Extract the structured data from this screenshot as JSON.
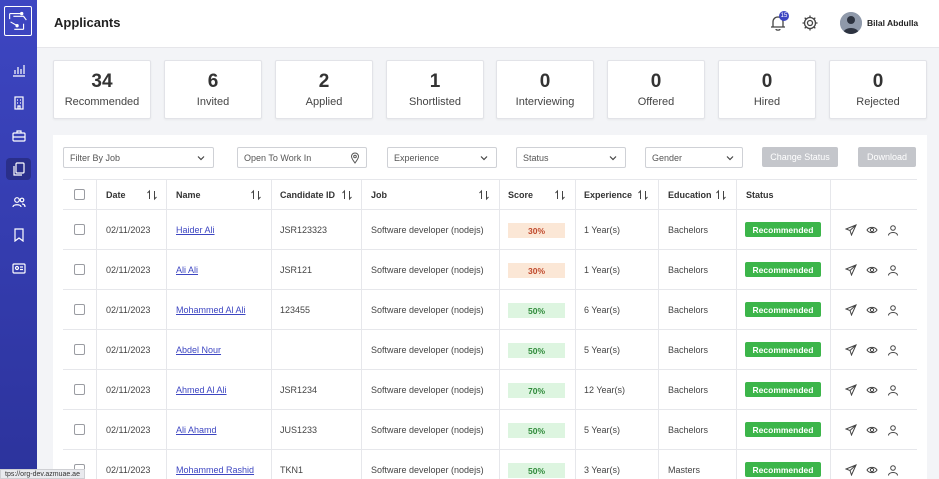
{
  "header": {
    "title": "Applicants",
    "notification_count": "15",
    "user_name": "Bilal Abdulla"
  },
  "stats": [
    {
      "value": "34",
      "label": "Recommended"
    },
    {
      "value": "6",
      "label": "Invited"
    },
    {
      "value": "2",
      "label": "Applied"
    },
    {
      "value": "1",
      "label": "Shortlisted"
    },
    {
      "value": "0",
      "label": "Interviewing"
    },
    {
      "value": "0",
      "label": "Offered"
    },
    {
      "value": "0",
      "label": "Hired"
    },
    {
      "value": "0",
      "label": "Rejected"
    }
  ],
  "filters": {
    "job": "Filter By Job",
    "location": "Open To Work In",
    "experience": "Experience",
    "status": "Status",
    "gender": "Gender",
    "change_status": "Change Status",
    "download": "Download"
  },
  "table": {
    "columns": {
      "date": "Date",
      "name": "Name",
      "candidate_id": "Candidate ID",
      "job": "Job",
      "score": "Score",
      "experience": "Experience",
      "education": "Education",
      "status": "Status"
    },
    "rows": [
      {
        "date": "02/11/2023",
        "name": "Haider Ali",
        "candidate_id": "JSR123323",
        "job": "Software developer (nodejs)",
        "score": "30%",
        "experience": "1 Year(s)",
        "education": "Bachelors",
        "status": "Recommended"
      },
      {
        "date": "02/11/2023",
        "name": "Ali Ali",
        "candidate_id": "JSR121",
        "job": "Software developer (nodejs)",
        "score": "30%",
        "experience": "1 Year(s)",
        "education": "Bachelors",
        "status": "Recommended"
      },
      {
        "date": "02/11/2023",
        "name": "Mohammed Al Ali",
        "candidate_id": "123455",
        "job": "Software developer (nodejs)",
        "score": "50%",
        "experience": "6 Year(s)",
        "education": "Bachelors",
        "status": "Recommended"
      },
      {
        "date": "02/11/2023",
        "name": "Abdel Nour",
        "candidate_id": "",
        "job": "Software developer (nodejs)",
        "score": "50%",
        "experience": "5 Year(s)",
        "education": "Bachelors",
        "status": "Recommended"
      },
      {
        "date": "02/11/2023",
        "name": "Ahmed Al Ali",
        "candidate_id": "JSR1234",
        "job": "Software developer (nodejs)",
        "score": "70%",
        "experience": "12 Year(s)",
        "education": "Bachelors",
        "status": "Recommended"
      },
      {
        "date": "02/11/2023",
        "name": "Ali Ahamd",
        "candidate_id": "JUS1233",
        "job": "Software developer (nodejs)",
        "score": "50%",
        "experience": "5 Year(s)",
        "education": "Bachelors",
        "status": "Recommended"
      },
      {
        "date": "02/11/2023",
        "name": "Mohammed Rashid",
        "candidate_id": "TKN1",
        "job": "Software developer (nodejs)",
        "score": "50%",
        "experience": "3 Year(s)",
        "education": "Masters",
        "status": "Recommended"
      }
    ]
  },
  "statusbar": {
    "url": "tps://org-dev.azmuae.ae"
  },
  "colors": {
    "accent": "#3d46c2",
    "status_green": "#3cb54a",
    "score_low_bg": "#fbe7d6",
    "score_mid_bg": "#ddf5e0"
  }
}
